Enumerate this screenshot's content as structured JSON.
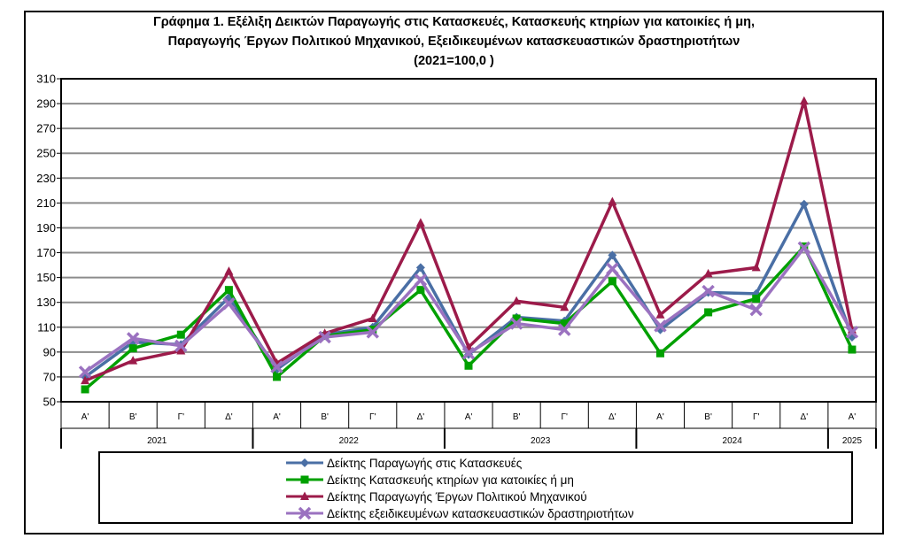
{
  "title_lines": [
    "Γράφημα 1. Εξέλιξη  Δεικτών Παραγωγής στις Κατασκευές,  Κατασκευής κτηρίων για κατοικίες ή  μη,",
    "Παραγωγής  Έργων Πολιτικού Μηχανικού,  Εξειδικευμένων κατασκευαστικών δραστηριοτήτων",
    "(2021=100,0 )"
  ],
  "chart_data": {
    "type": "line",
    "categories": [
      "Α'",
      "Β'",
      "Γ'",
      "Δ'",
      "Α'",
      "Β'",
      "Γ'",
      "Δ'",
      "Α'",
      "Β'",
      "Γ'",
      "Δ'",
      "Α'",
      "Β'",
      "Γ'",
      "Δ'",
      "Α'"
    ],
    "year_groups": [
      {
        "label": "2021",
        "count": 4
      },
      {
        "label": "2022",
        "count": 4
      },
      {
        "label": "2023",
        "count": 4
      },
      {
        "label": "2024",
        "count": 4
      },
      {
        "label": "2025",
        "count": 1
      }
    ],
    "ylim": [
      50,
      310
    ],
    "yticks": [
      50,
      70,
      90,
      110,
      130,
      150,
      170,
      190,
      210,
      230,
      250,
      270,
      290,
      310
    ],
    "grid": true,
    "legend_position": "bottom",
    "series": [
      {
        "name": "Δείκτης Παραγωγής στις Κατασκευές",
        "color": "#4a6fa5",
        "marker": "diamond",
        "values": [
          70,
          98,
          96,
          134,
          76,
          104,
          110,
          158,
          88,
          118,
          115,
          168,
          108,
          138,
          137,
          209,
          102
        ]
      },
      {
        "name": "Δείκτης Κατασκευής κτηρίων για κατοικίες ή μη",
        "color": "#00a000",
        "marker": "square",
        "values": [
          60,
          93,
          104,
          140,
          70,
          103,
          108,
          140,
          79,
          117,
          113,
          147,
          89,
          122,
          133,
          175,
          92
        ]
      },
      {
        "name": "Δείκτης Παραγωγής Έργων Πολιτικού Μηχανικού",
        "color": "#9c1b4a",
        "marker": "triangle",
        "values": [
          67,
          83,
          91,
          155,
          81,
          105,
          117,
          194,
          94,
          131,
          126,
          211,
          120,
          153,
          158,
          292,
          108
        ]
      },
      {
        "name": "Δείκτης εξειδικευμένων κατασκευαστικών δραστηριοτήτων",
        "color": "#9b72c0",
        "marker": "x",
        "values": [
          74,
          101,
          95,
          129,
          78,
          102,
          106,
          148,
          89,
          113,
          108,
          157,
          111,
          139,
          124,
          174,
          106
        ]
      }
    ]
  }
}
